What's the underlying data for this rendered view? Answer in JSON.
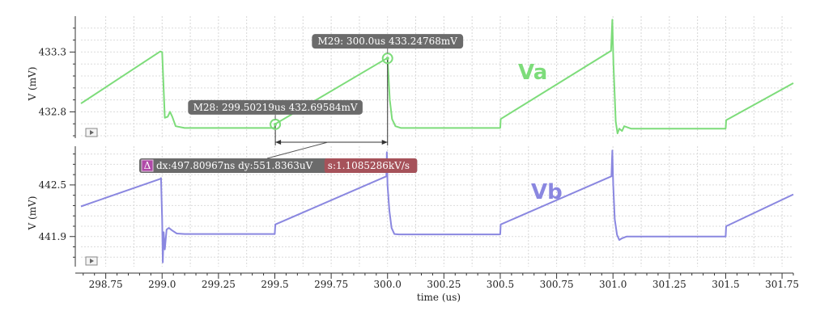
{
  "chart_data": {
    "type": "line",
    "x_axis": {
      "label": "time (us)",
      "range": [
        298.64,
        301.8
      ],
      "ticks": [
        298.75,
        299.0,
        299.25,
        299.5,
        299.75,
        300.0,
        300.25,
        300.5,
        300.75,
        301.0,
        301.25,
        301.5,
        301.75
      ],
      "tick_labels": [
        "298.75",
        "299.0",
        "299.25",
        "299.5",
        "299.75",
        "300.0",
        "300.25",
        "300.5",
        "300.75",
        "301.0",
        "301.25",
        "301.5",
        "301.75"
      ]
    },
    "panels": [
      {
        "name": "Va",
        "color": "#7ddc7a",
        "ylabel": "V (mV)",
        "yrange": [
          432.58,
          433.6
        ],
        "yticks": [
          432.8,
          433.3
        ],
        "ytick_labels": [
          "432.8",
          "433.3"
        ],
        "points": [
          [
            298.64,
            432.87
          ],
          [
            298.9915,
            433.305
          ],
          [
            299.0,
            433.3
          ],
          [
            299.012,
            432.75
          ],
          [
            299.025,
            432.76
          ],
          [
            299.035,
            432.8
          ],
          [
            299.045,
            432.76
          ],
          [
            299.06,
            432.68
          ],
          [
            299.1,
            432.665
          ],
          [
            299.2,
            432.665
          ],
          [
            299.5,
            432.665
          ],
          [
            299.5,
            432.696
          ],
          [
            299.99,
            433.24
          ],
          [
            300.0,
            433.248
          ],
          [
            300.01,
            432.9
          ],
          [
            300.02,
            432.74
          ],
          [
            300.035,
            432.68
          ],
          [
            300.06,
            432.665
          ],
          [
            300.2,
            432.665
          ],
          [
            300.4995,
            432.665
          ],
          [
            300.5,
            432.67
          ],
          [
            300.502,
            432.74
          ],
          [
            300.9915,
            433.31
          ],
          [
            300.997,
            433.57
          ],
          [
            301.002,
            433.2
          ],
          [
            301.012,
            432.72
          ],
          [
            301.02,
            432.62
          ],
          [
            301.028,
            432.66
          ],
          [
            301.04,
            432.64
          ],
          [
            301.05,
            432.68
          ],
          [
            301.08,
            432.66
          ],
          [
            301.4995,
            432.66
          ],
          [
            301.5,
            432.67
          ],
          [
            301.502,
            432.73
          ],
          [
            301.8,
            433.04
          ]
        ]
      },
      {
        "name": "Vb",
        "color": "#8a87e0",
        "ylabel": "V (mV)",
        "yrange": [
          441.55,
          442.95
        ],
        "yticks": [
          441.9,
          442.5
        ],
        "ytick_labels": [
          "441.9",
          "442.5"
        ],
        "points": [
          [
            298.64,
            442.25
          ],
          [
            298.9915,
            442.57
          ],
          [
            298.995,
            442.58
          ],
          [
            299.0,
            442.1
          ],
          [
            299.003,
            441.6
          ],
          [
            299.007,
            441.95
          ],
          [
            299.012,
            441.75
          ],
          [
            299.02,
            441.98
          ],
          [
            299.03,
            442.0
          ],
          [
            299.045,
            441.97
          ],
          [
            299.065,
            441.935
          ],
          [
            299.1,
            441.93
          ],
          [
            299.3,
            441.93
          ],
          [
            299.4995,
            441.93
          ],
          [
            299.5,
            441.945
          ],
          [
            299.502,
            442.04
          ],
          [
            299.995,
            442.6
          ],
          [
            299.997,
            442.88
          ],
          [
            300.0,
            442.5
          ],
          [
            300.008,
            442.2
          ],
          [
            300.018,
            442.0
          ],
          [
            300.03,
            441.93
          ],
          [
            300.05,
            441.925
          ],
          [
            300.3,
            441.925
          ],
          [
            300.4995,
            441.925
          ],
          [
            300.5,
            441.94
          ],
          [
            300.502,
            442.04
          ],
          [
            300.993,
            442.6
          ],
          [
            300.997,
            442.9
          ],
          [
            301.001,
            442.5
          ],
          [
            301.008,
            442.1
          ],
          [
            301.018,
            441.92
          ],
          [
            301.028,
            441.86
          ],
          [
            301.04,
            441.88
          ],
          [
            301.06,
            441.9
          ],
          [
            301.2,
            441.9
          ],
          [
            301.4995,
            441.9
          ],
          [
            301.5,
            441.92
          ],
          [
            301.502,
            442.02
          ],
          [
            301.8,
            442.39
          ]
        ]
      }
    ],
    "markers": [
      {
        "id": "M28",
        "label": "M28: 299.50219us 432.69584mV",
        "x": 299.50219,
        "y": 432.69584,
        "panel": 0
      },
      {
        "id": "M29",
        "label": "M29: 300.0us 433.24768mV",
        "x": 300.0,
        "y": 433.24768,
        "panel": 0
      }
    ],
    "delta": {
      "icon": "Δ",
      "text": "dx:497.80967ns dy:551.8363uV",
      "slope": "s:1.1085286kV/s"
    },
    "grid": true
  }
}
